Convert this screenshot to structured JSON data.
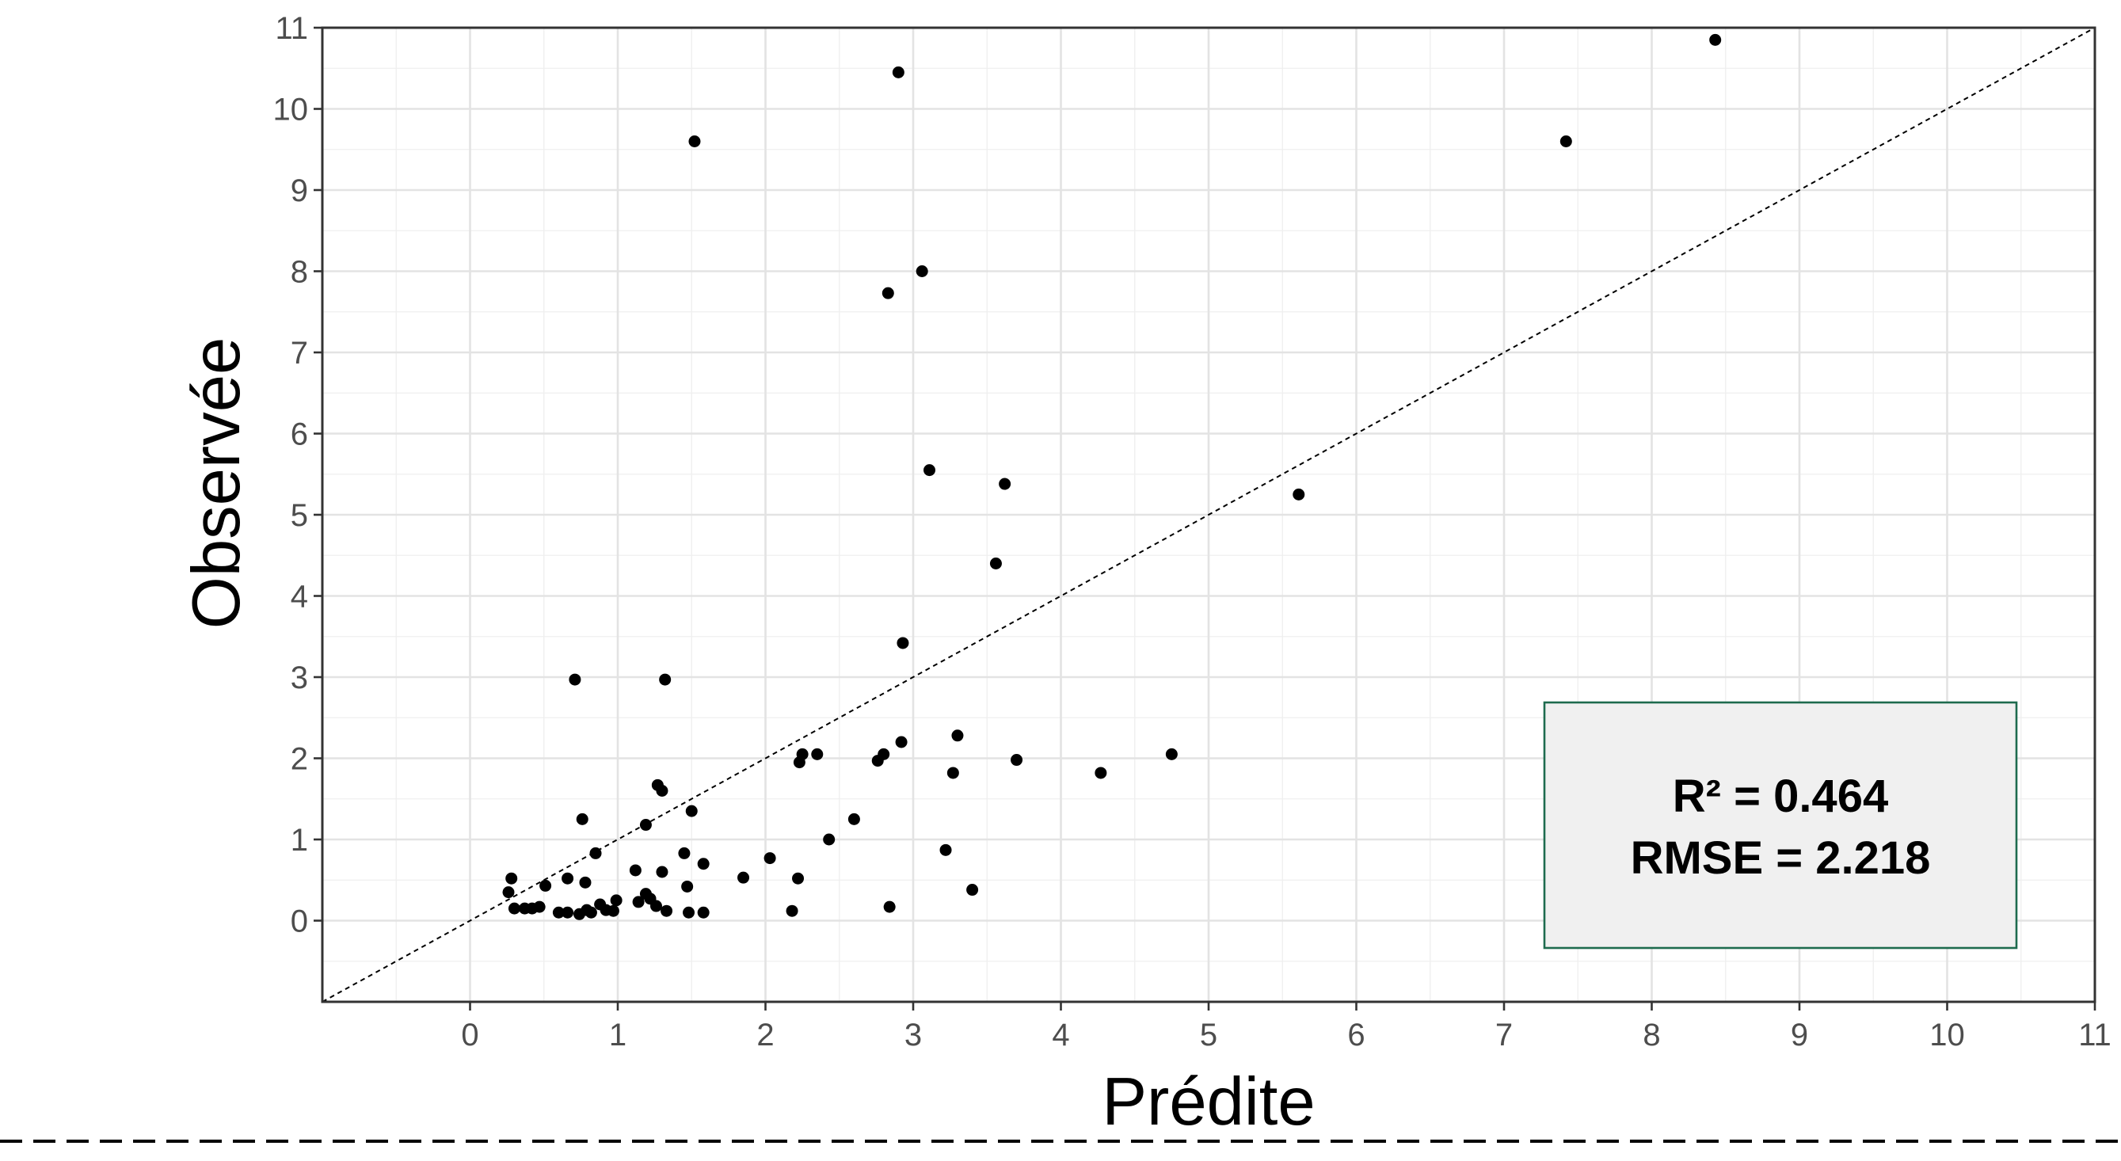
{
  "chart_data": {
    "type": "scatter",
    "title": "",
    "xlabel": "Prédite",
    "ylabel": "Observée",
    "xlim": [
      -1,
      11
    ],
    "ylim": [
      -1,
      11
    ],
    "x_ticks": [
      0,
      1,
      2,
      3,
      4,
      5,
      6,
      7,
      8,
      9,
      10,
      11
    ],
    "y_ticks": [
      0,
      1,
      2,
      3,
      4,
      5,
      6,
      7,
      8,
      9,
      10,
      11
    ],
    "grid": true,
    "reference_line": {
      "type": "identity",
      "style": "dashed",
      "color": "#000000"
    },
    "annotation": {
      "lines": [
        "R² = 0.464",
        "RMSE = 2.218"
      ],
      "placement": "bottom-right",
      "fill_color": "#f0f0f0",
      "border_color": "#1e6b4e"
    },
    "series": [
      {
        "color": "#000000",
        "points": [
          [
            8.43,
            10.85
          ],
          [
            2.9,
            10.45
          ],
          [
            1.52,
            9.6
          ],
          [
            7.42,
            9.6
          ],
          [
            2.83,
            7.73
          ],
          [
            3.06,
            8.0
          ],
          [
            3.11,
            5.55
          ],
          [
            3.62,
            5.38
          ],
          [
            5.61,
            5.25
          ],
          [
            3.56,
            4.4
          ],
          [
            2.93,
            3.42
          ],
          [
            0.71,
            2.97
          ],
          [
            1.32,
            2.97
          ],
          [
            3.3,
            2.28
          ],
          [
            2.92,
            2.2
          ],
          [
            2.8,
            2.05
          ],
          [
            2.76,
            1.97
          ],
          [
            2.25,
            2.05
          ],
          [
            2.23,
            1.95
          ],
          [
            2.35,
            2.05
          ],
          [
            3.7,
            1.98
          ],
          [
            4.75,
            2.05
          ],
          [
            4.27,
            1.82
          ],
          [
            3.27,
            1.82
          ],
          [
            1.27,
            1.67
          ],
          [
            1.3,
            1.6
          ],
          [
            1.5,
            1.35
          ],
          [
            1.19,
            1.18
          ],
          [
            0.76,
            1.25
          ],
          [
            2.6,
            1.25
          ],
          [
            2.43,
            1.0
          ],
          [
            0.85,
            0.83
          ],
          [
            1.45,
            0.83
          ],
          [
            2.03,
            0.77
          ],
          [
            1.12,
            0.62
          ],
          [
            1.58,
            0.7
          ],
          [
            3.22,
            0.87
          ],
          [
            1.3,
            0.6
          ],
          [
            0.28,
            0.52
          ],
          [
            0.66,
            0.52
          ],
          [
            1.85,
            0.53
          ],
          [
            2.22,
            0.52
          ],
          [
            0.51,
            0.43
          ],
          [
            0.78,
            0.47
          ],
          [
            1.47,
            0.42
          ],
          [
            3.4,
            0.38
          ],
          [
            1.19,
            0.33
          ],
          [
            0.26,
            0.35
          ],
          [
            1.22,
            0.27
          ],
          [
            0.99,
            0.25
          ],
          [
            1.14,
            0.23
          ],
          [
            0.88,
            0.2
          ],
          [
            1.26,
            0.18
          ],
          [
            0.3,
            0.15
          ],
          [
            0.37,
            0.15
          ],
          [
            0.42,
            0.15
          ],
          [
            0.47,
            0.17
          ],
          [
            0.92,
            0.13
          ],
          [
            0.82,
            0.1
          ],
          [
            0.6,
            0.1
          ],
          [
            0.66,
            0.1
          ],
          [
            0.74,
            0.08
          ],
          [
            0.79,
            0.13
          ],
          [
            0.97,
            0.12
          ],
          [
            1.33,
            0.12
          ],
          [
            1.48,
            0.1
          ],
          [
            1.58,
            0.1
          ],
          [
            2.18,
            0.12
          ],
          [
            2.84,
            0.17
          ]
        ]
      }
    ]
  }
}
